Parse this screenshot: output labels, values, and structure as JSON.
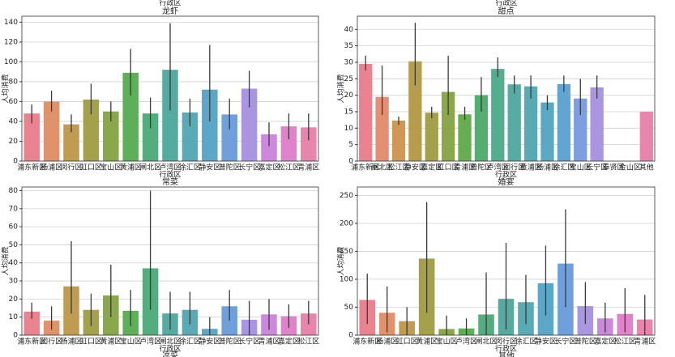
{
  "cut_texts": {
    "top": [
      "行政区",
      "行政区"
    ],
    "bottom": [
      "凉菜",
      "其他"
    ]
  },
  "chart_data": [
    {
      "type": "bar",
      "title": "龙虾",
      "x_label": "行政区",
      "y_label": "人均消费",
      "categories": [
        "浦东新区",
        "杨浦区",
        "闵行区",
        "虹口区",
        "宝山区",
        "黄浦区",
        "闸北区",
        "卢湾区",
        "徐汇区",
        "静安区",
        "普陀区",
        "长宁区",
        "嘉定区",
        "松江区",
        "青浦区"
      ],
      "values": [
        48,
        60,
        37,
        62,
        50,
        89,
        48,
        92,
        49,
        72,
        47,
        73,
        27,
        35,
        34
      ],
      "error_low": [
        38,
        50,
        29,
        47,
        40,
        66,
        33,
        51,
        35,
        40,
        32,
        54,
        15,
        22,
        21
      ],
      "error_high": [
        57,
        71,
        47,
        78,
        60,
        113,
        64,
        139,
        63,
        117,
        63,
        91,
        39,
        48,
        48
      ],
      "colors": [
        "#e8838f",
        "#e0936a",
        "#c09b52",
        "#a3a24a",
        "#8aa84b",
        "#5fae5a",
        "#55ad7f",
        "#56aba0",
        "#58aab5",
        "#5ca7c8",
        "#6fa0dc",
        "#a995e0",
        "#cc88dd",
        "#e183cb",
        "#e785ac"
      ],
      "ylim": [
        0,
        146
      ],
      "yticks": [
        0,
        20,
        40,
        60,
        80,
        100,
        120,
        140
      ],
      "grid": true
    },
    {
      "type": "bar",
      "title": "甜点",
      "x_label": "行政区",
      "y_label": "人均消费",
      "categories": [
        "浦东新区",
        "闸北区",
        "松江区",
        "静安区",
        "嘉定区",
        "虹口区",
        "青浦区",
        "普陀区",
        "卢湾区",
        "闵行区",
        "黄浦区",
        "杨浦区",
        "徐汇区",
        "宝山区",
        "长宁区",
        "奉贤区",
        "金山区",
        "其他"
      ],
      "values": [
        29.5,
        19.5,
        12.3,
        30.3,
        14.7,
        21,
        14.2,
        20,
        28,
        23.3,
        22.7,
        17.8,
        23.4,
        19,
        22.4,
        null,
        null,
        15
      ],
      "error_low": [
        27.5,
        14,
        11,
        23,
        13,
        14,
        12.5,
        15,
        25.5,
        20.5,
        19,
        15.5,
        21,
        14,
        19,
        null,
        null,
        null
      ],
      "error_high": [
        32,
        29,
        13.5,
        42,
        16.5,
        32,
        16.5,
        25.5,
        31.5,
        26,
        26,
        20,
        26,
        25,
        26,
        null,
        null,
        null
      ],
      "colors": [
        "#e8838f",
        "#e38f74",
        "#d09856",
        "#b59d4b",
        "#a3a24a",
        "#8aa84b",
        "#68ad52",
        "#55ad72",
        "#55ad8f",
        "#56aba4",
        "#58aab5",
        "#5ba8c4",
        "#62a4d4",
        "#7d9ee0",
        "#a995e0",
        "#c58ade",
        "#dc85d0",
        "#e785ac"
      ],
      "ylim": [
        0,
        44
      ],
      "yticks": [
        0,
        5,
        10,
        15,
        20,
        25,
        30,
        35,
        40
      ],
      "grid": true
    },
    {
      "type": "bar",
      "title": "常菜",
      "x_label": "行政区",
      "y_label": "人均消费",
      "categories": [
        "浦东新区",
        "闵行区",
        "杨浦区",
        "虹口区",
        "黄浦区",
        "宝山区",
        "卢湾区",
        "闸北区",
        "徐汇区",
        "静安区",
        "普陀区",
        "长宁区",
        "青浦区",
        "嘉定区",
        "松江区"
      ],
      "values": [
        13,
        8,
        27,
        14,
        22,
        13.5,
        37,
        12,
        14,
        3.5,
        16,
        8.5,
        11.5,
        10.5,
        12
      ],
      "error_low": [
        9,
        3,
        12,
        5,
        10,
        5,
        14,
        3,
        6,
        0,
        8,
        0,
        3,
        4,
        6
      ],
      "error_high": [
        18,
        16,
        52,
        23,
        39,
        25,
        80,
        24,
        24,
        10,
        25,
        19,
        20,
        17,
        19
      ],
      "colors": [
        "#e8838f",
        "#e0936a",
        "#c09b52",
        "#a3a24a",
        "#8aa84b",
        "#5fae5a",
        "#55ad7f",
        "#56aba0",
        "#58aab5",
        "#5ca7c8",
        "#6fa0dc",
        "#a995e0",
        "#cc88dd",
        "#e183cb",
        "#e785ac"
      ],
      "ylim": [
        0,
        82
      ],
      "yticks": [
        0,
        10,
        20,
        30,
        40,
        50,
        60,
        70,
        80
      ],
      "grid": true
    },
    {
      "type": "bar",
      "title": "婚宴",
      "x_label": "行政区",
      "y_label": "人均消费",
      "categories": [
        "浦东新区",
        "杨浦区",
        "虹口区",
        "黄浦区",
        "宝山区",
        "卢湾区",
        "闸北区",
        "闵行区",
        "徐汇区",
        "静安区",
        "长宁区",
        "普陀区",
        "嘉定区",
        "松江区",
        "青浦区"
      ],
      "values": [
        63,
        40,
        25,
        137,
        11,
        12,
        37,
        65,
        59,
        93,
        128,
        52,
        30,
        38,
        28
      ],
      "error_low": [
        20,
        5,
        0,
        40,
        0,
        0,
        0,
        10,
        20,
        35,
        50,
        20,
        5,
        5,
        0
      ],
      "error_high": [
        110,
        87,
        50,
        238,
        35,
        30,
        112,
        165,
        108,
        160,
        225,
        95,
        58,
        84,
        72
      ],
      "colors": [
        "#e8838f",
        "#e0936a",
        "#c09b52",
        "#a3a24a",
        "#8aa84b",
        "#5fae5a",
        "#55ad7f",
        "#56aba0",
        "#58aab5",
        "#5ca7c8",
        "#6fa0dc",
        "#a995e0",
        "#cc88dd",
        "#e183cb",
        "#e785ac"
      ],
      "ylim": [
        0,
        265
      ],
      "yticks": [
        0,
        50,
        100,
        150,
        200,
        250
      ],
      "grid": true
    }
  ]
}
